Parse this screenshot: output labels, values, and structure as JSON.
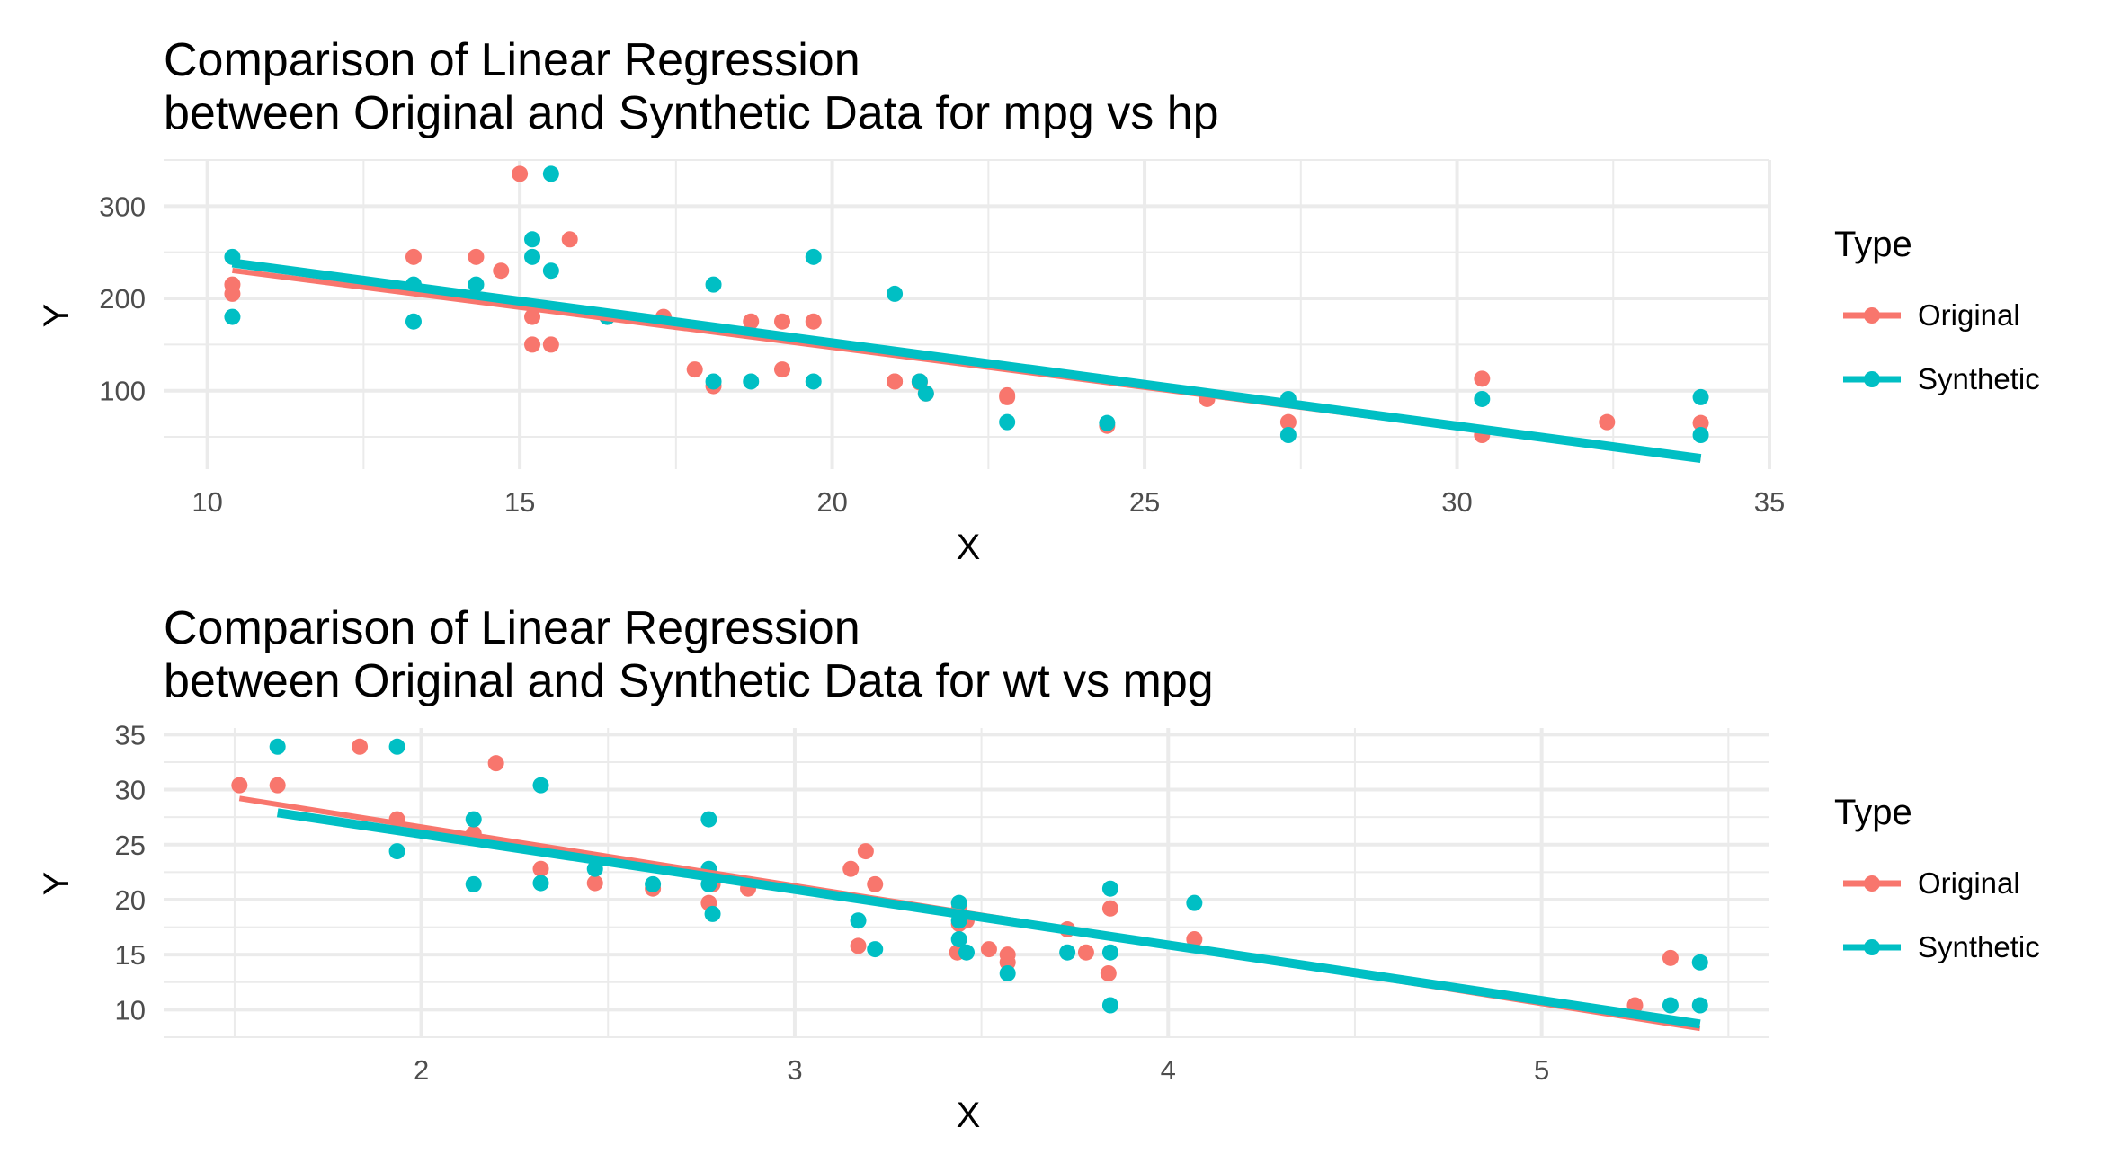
{
  "colors": {
    "original": "#F8766D",
    "synthetic": "#00BFC4",
    "grid": "#EBEBEB"
  },
  "chart_data": [
    {
      "type": "scatter",
      "title_line1": "Comparison of Linear Regression",
      "title_line2": "between Original and Synthetic Data for mpg vs hp",
      "xlabel": "X",
      "ylabel": "Y",
      "xlim": [
        9.3,
        35
      ],
      "ylim": [
        15,
        350
      ],
      "xticks": [
        10,
        15,
        20,
        25,
        30,
        35
      ],
      "yticks": [
        100,
        200,
        300
      ],
      "legend_title": "Type",
      "legend_position": "right",
      "grid": true,
      "series": [
        {
          "name": "Original",
          "color": "#F8766D",
          "points": [
            [
              21.0,
              110
            ],
            [
              21.0,
              110
            ],
            [
              22.8,
              93
            ],
            [
              21.4,
              110
            ],
            [
              18.7,
              175
            ],
            [
              18.1,
              105
            ],
            [
              14.3,
              245
            ],
            [
              24.4,
              62
            ],
            [
              22.8,
              95
            ],
            [
              19.2,
              123
            ],
            [
              17.8,
              123
            ],
            [
              16.4,
              180
            ],
            [
              17.3,
              180
            ],
            [
              15.2,
              180
            ],
            [
              10.4,
              205
            ],
            [
              10.4,
              215
            ],
            [
              14.7,
              230
            ],
            [
              32.4,
              66
            ],
            [
              30.4,
              52
            ],
            [
              33.9,
              65
            ],
            [
              21.5,
              97
            ],
            [
              15.5,
              150
            ],
            [
              15.2,
              150
            ],
            [
              13.3,
              245
            ],
            [
              19.2,
              175
            ],
            [
              27.3,
              66
            ],
            [
              26.0,
              91
            ],
            [
              30.4,
              113
            ],
            [
              15.8,
              264
            ],
            [
              19.7,
              175
            ],
            [
              15.0,
              335
            ],
            [
              21.4,
              109
            ]
          ],
          "fit": [
            [
              10.4,
              230.3
            ],
            [
              33.9,
              26.6
            ]
          ]
        },
        {
          "name": "Synthetic",
          "color": "#00BFC4",
          "points": [
            [
              10.4,
              245
            ],
            [
              10.4,
              180
            ],
            [
              13.3,
              215
            ],
            [
              13.3,
              175
            ],
            [
              14.3,
              215
            ],
            [
              15.2,
              264
            ],
            [
              15.2,
              245
            ],
            [
              15.5,
              335
            ],
            [
              15.5,
              230
            ],
            [
              16.4,
              180
            ],
            [
              18.1,
              215
            ],
            [
              18.1,
              110
            ],
            [
              18.7,
              110
            ],
            [
              19.7,
              245
            ],
            [
              19.7,
              110
            ],
            [
              21.0,
              205
            ],
            [
              21.4,
              110
            ],
            [
              21.5,
              97
            ],
            [
              22.8,
              66
            ],
            [
              24.4,
              65
            ],
            [
              27.3,
              91
            ],
            [
              27.3,
              52
            ],
            [
              30.4,
              91
            ],
            [
              33.9,
              93
            ],
            [
              33.9,
              52
            ]
          ],
          "fit": [
            [
              10.4,
              238.5
            ],
            [
              33.9,
              26.6
            ]
          ]
        }
      ]
    },
    {
      "type": "scatter",
      "title_line1": "Comparison of Linear Regression",
      "title_line2": "between Original and Synthetic Data for wt vs mpg",
      "xlabel": "X",
      "ylabel": "Y",
      "xlim": [
        1.31,
        5.61
      ],
      "ylim": [
        7.5,
        35.6
      ],
      "xticks": [
        2,
        3,
        4,
        5
      ],
      "yticks": [
        10,
        15,
        20,
        25,
        30,
        35
      ],
      "legend_title": "Type",
      "legend_position": "right",
      "grid": true,
      "series": [
        {
          "name": "Original",
          "color": "#F8766D",
          "points": [
            [
              2.62,
              21.0
            ],
            [
              2.875,
              21.0
            ],
            [
              2.32,
              22.8
            ],
            [
              3.215,
              21.4
            ],
            [
              3.44,
              18.7
            ],
            [
              3.46,
              18.1
            ],
            [
              3.57,
              14.3
            ],
            [
              3.19,
              24.4
            ],
            [
              3.15,
              22.8
            ],
            [
              3.44,
              19.2
            ],
            [
              3.44,
              17.8
            ],
            [
              4.07,
              16.4
            ],
            [
              3.73,
              17.3
            ],
            [
              3.78,
              15.2
            ],
            [
              5.25,
              10.4
            ],
            [
              5.345,
              14.7
            ],
            [
              2.2,
              32.4
            ],
            [
              1.615,
              30.4
            ],
            [
              1.835,
              33.9
            ],
            [
              2.465,
              21.5
            ],
            [
              3.52,
              15.5
            ],
            [
              3.435,
              15.2
            ],
            [
              3.84,
              13.3
            ],
            [
              3.845,
              19.2
            ],
            [
              1.935,
              27.3
            ],
            [
              2.14,
              26.0
            ],
            [
              1.513,
              30.4
            ],
            [
              3.17,
              15.8
            ],
            [
              2.77,
              19.7
            ],
            [
              3.57,
              15.0
            ],
            [
              2.78,
              21.4
            ]
          ],
          "fit": [
            [
              1.513,
              29.2
            ],
            [
              5.424,
              8.3
            ]
          ]
        },
        {
          "name": "Synthetic",
          "color": "#00BFC4",
          "points": [
            [
              1.615,
              33.9
            ],
            [
              1.935,
              33.9
            ],
            [
              1.935,
              24.4
            ],
            [
              2.14,
              27.3
            ],
            [
              2.14,
              21.4
            ],
            [
              2.32,
              30.4
            ],
            [
              2.32,
              21.5
            ],
            [
              2.465,
              22.8
            ],
            [
              2.62,
              21.4
            ],
            [
              2.77,
              27.3
            ],
            [
              2.77,
              22.8
            ],
            [
              2.77,
              21.4
            ],
            [
              2.78,
              18.7
            ],
            [
              3.17,
              18.1
            ],
            [
              3.215,
              15.5
            ],
            [
              3.44,
              19.7
            ],
            [
              3.44,
              18.1
            ],
            [
              3.44,
              16.4
            ],
            [
              3.46,
              15.2
            ],
            [
              3.57,
              13.3
            ],
            [
              3.73,
              15.2
            ],
            [
              3.845,
              21.0
            ],
            [
              3.845,
              15.2
            ],
            [
              3.845,
              10.4
            ],
            [
              4.07,
              19.7
            ],
            [
              5.345,
              10.4
            ],
            [
              5.424,
              14.3
            ],
            [
              5.424,
              10.4
            ]
          ],
          "fit": [
            [
              1.615,
              27.9
            ],
            [
              5.424,
              8.7
            ]
          ]
        }
      ]
    }
  ]
}
